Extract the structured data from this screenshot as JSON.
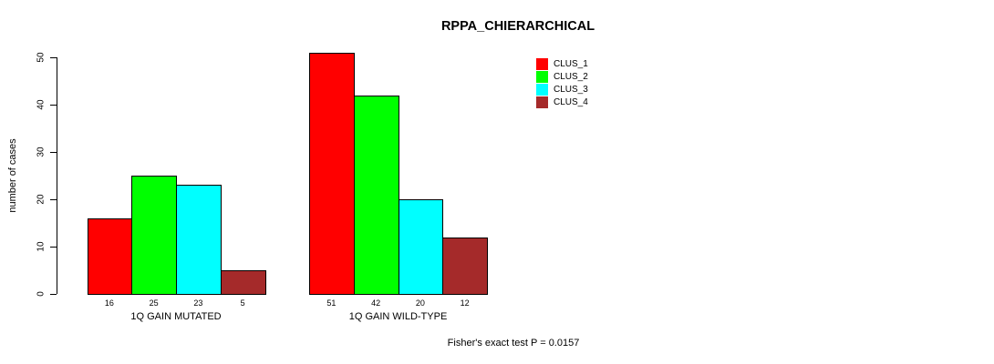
{
  "chart_data": {
    "type": "bar",
    "title": "RPPA_CHIERARCHICAL",
    "ylabel": "number of cases",
    "xlabel": "",
    "ylim": [
      0,
      50
    ],
    "yticks": [
      0,
      10,
      20,
      30,
      40,
      50
    ],
    "grid": false,
    "legend_position": "top-right",
    "categories": [
      "1Q GAIN MUTATED",
      "1Q GAIN WILD-TYPE"
    ],
    "series": [
      {
        "name": "CLUS_1",
        "color": "#FF0000",
        "values": [
          16,
          51
        ]
      },
      {
        "name": "CLUS_2",
        "color": "#00FF00",
        "values": [
          25,
          42
        ]
      },
      {
        "name": "CLUS_3",
        "color": "#00FFFF",
        "values": [
          23,
          20
        ]
      },
      {
        "name": "CLUS_4",
        "color": "#A52A2A",
        "values": [
          5,
          12
        ]
      }
    ],
    "bar_value_labels": {
      "1Q GAIN MUTATED": [
        16,
        25,
        23,
        5
      ],
      "1Q GAIN WILD-TYPE": [
        51,
        42,
        20,
        12
      ]
    },
    "annotation": "Fisher's exact test P = 0.0157"
  }
}
